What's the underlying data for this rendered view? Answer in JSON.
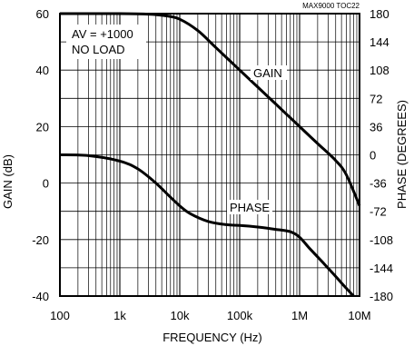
{
  "chart_data": {
    "type": "line",
    "code_label": "MAX9000 TOC22",
    "xlabel": "FREQUENCY (Hz)",
    "ylabel_left": "GAIN (dB)",
    "ylabel_right": "PHASE (DEGREES)",
    "x_scale": "log",
    "xlim": [
      100,
      10000000
    ],
    "ylim_left": [
      -40,
      60
    ],
    "ylim_right": [
      -180,
      180
    ],
    "x_ticks": [
      "100",
      "1k",
      "10k",
      "100k",
      "1M",
      "10M"
    ],
    "y_ticks_left": [
      "60",
      "40",
      "20",
      "0",
      "-20",
      "-40"
    ],
    "y_ticks_right": [
      "180",
      "144",
      "108",
      "72",
      "36",
      "0",
      "-36",
      "-72",
      "-108",
      "-144",
      "-180"
    ],
    "conditions": [
      "AV = +1000",
      "NO LOAD"
    ],
    "grid": true,
    "series": [
      {
        "name": "GAIN",
        "axis": "left",
        "x": [
          100,
          1000,
          3000,
          6000,
          10000,
          20000,
          40000,
          100000,
          200000,
          400000,
          1000000,
          2000000,
          4000000,
          6000000,
          10000000
        ],
        "y": [
          60,
          60,
          59.8,
          59.2,
          58,
          54,
          48,
          40,
          34,
          28,
          20,
          14,
          8,
          3,
          -8
        ]
      },
      {
        "name": "PHASE",
        "axis": "right",
        "x": [
          100,
          300,
          1000,
          2000,
          4000,
          7000,
          10000,
          15000,
          30000,
          60000,
          100000,
          200000,
          400000,
          700000,
          1000000,
          1500000,
          2500000,
          4000000,
          6000000,
          8000000
        ],
        "y": [
          0,
          -1,
          -8,
          -18,
          -36,
          -54,
          -65,
          -75,
          -85,
          -89,
          -90,
          -92,
          -95,
          -98,
          -105,
          -120,
          -138,
          -155,
          -170,
          -180
        ]
      }
    ]
  }
}
